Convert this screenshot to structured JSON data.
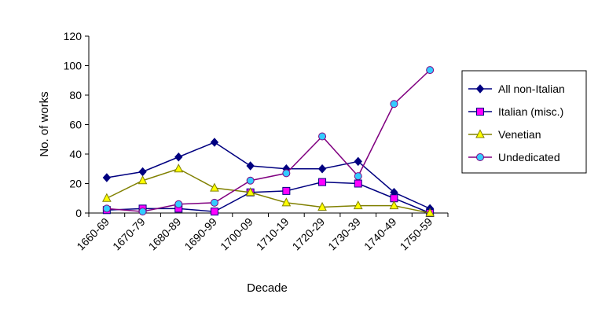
{
  "chart_data": {
    "type": "line",
    "xlabel": "Decade",
    "ylabel": "No. of works",
    "ylim": [
      0,
      120
    ],
    "yticks": [
      0,
      20,
      40,
      60,
      80,
      100,
      120
    ],
    "grid": false,
    "legend_position": "right",
    "categories": [
      "1660-69",
      "1670-79",
      "1680-89",
      "1690-99",
      "1700-09",
      "1710-19",
      "1720-29",
      "1730-39",
      "1740-49",
      "1750-59"
    ],
    "series": [
      {
        "name": "All non-Italian",
        "color": "#000080",
        "marker": "diamond",
        "marker_fill": "#000080",
        "values": [
          24,
          28,
          38,
          48,
          32,
          30,
          30,
          35,
          14,
          3
        ]
      },
      {
        "name": "Italian (misc.)",
        "color": "#000080",
        "marker": "square",
        "marker_fill": "#ff00ff",
        "values": [
          2,
          3,
          3,
          1,
          14,
          15,
          21,
          20,
          10,
          0
        ]
      },
      {
        "name": "Venetian",
        "color": "#808000",
        "marker": "triangle",
        "marker_fill": "#ffff00",
        "values": [
          10,
          22,
          30,
          17,
          14,
          7,
          4,
          5,
          5,
          0
        ]
      },
      {
        "name": "Undedicated",
        "color": "#800080",
        "marker": "circle",
        "marker_fill": "#33ccff",
        "values": [
          3,
          1,
          6,
          7,
          22,
          27,
          52,
          25,
          74,
          97
        ]
      }
    ]
  }
}
